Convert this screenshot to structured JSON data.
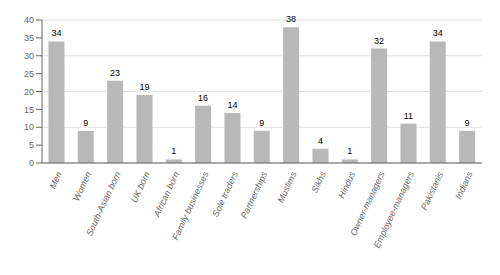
{
  "chart_data": {
    "type": "bar",
    "categories": [
      "Men",
      "Women",
      "South-Asian born",
      "UK born",
      "African born",
      "Family businesses",
      "Sole traders",
      "Partnerships",
      "Muslims",
      "Sikhs",
      "Hindus",
      "Owner-managers",
      "Employee-managers",
      "Pakistanis",
      "Indians"
    ],
    "values": [
      34,
      9,
      23,
      19,
      1,
      16,
      14,
      9,
      38,
      4,
      1,
      32,
      11,
      34,
      9
    ],
    "color": "#b8b8b8",
    "ylim": [
      0,
      40
    ],
    "yticks": [
      0,
      5,
      10,
      15,
      20,
      25,
      30,
      35,
      40
    ],
    "grid": true,
    "data_labels": true
  }
}
